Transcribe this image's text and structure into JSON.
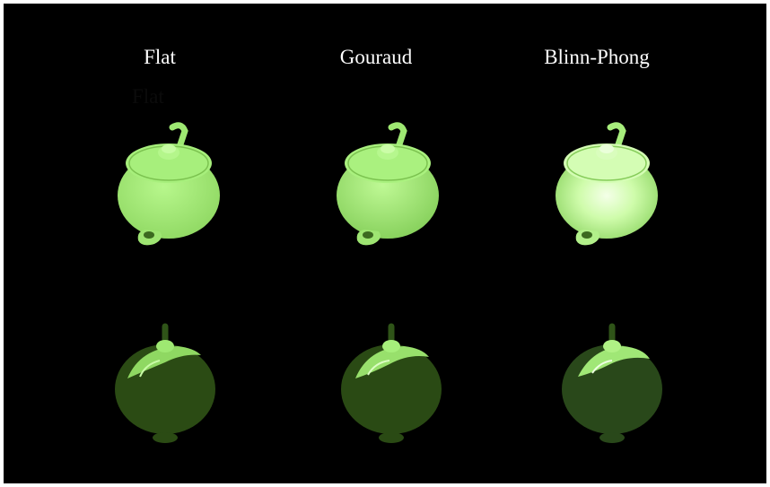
{
  "columns": [
    {
      "label": "Flat",
      "shading": "flat"
    },
    {
      "label": "Gouraud",
      "shading": "gouraud"
    },
    {
      "label": "Blinn-Phong",
      "shading": "blinn-phong"
    }
  ],
  "ghost_label": "Flat",
  "colors": {
    "background": "#000000",
    "border": "#ffffff",
    "teapot_lit": "#a6f07a",
    "teapot_dark": "#2a4a14",
    "specular": "#f2ffe6"
  }
}
